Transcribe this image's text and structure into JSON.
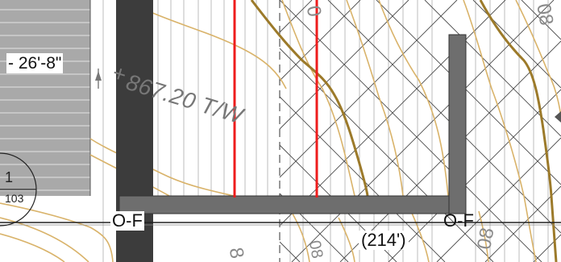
{
  "drawing": {
    "dimension_label": "- 26'-8\"",
    "elevation_label": "867.20 T/W",
    "elevation_plus": "+",
    "grid_label_left": "O-F",
    "grid_label_right": "O-F",
    "segment_length_label": "(214')",
    "detail_marker": {
      "number": "1",
      "sheet": "103"
    },
    "contour_labels": [
      "0",
      "08",
      "8",
      "08",
      "08"
    ]
  },
  "colors": {
    "wall_dark": "#3c3c3c",
    "wall_mid": "#6e6e6e",
    "contour_tan": "#d9b36a",
    "contour_major": "#9c7a2a",
    "property_line_red": "#ee1c1c",
    "hatch_line": "#4a4a4a",
    "grid_line": "#222222"
  }
}
